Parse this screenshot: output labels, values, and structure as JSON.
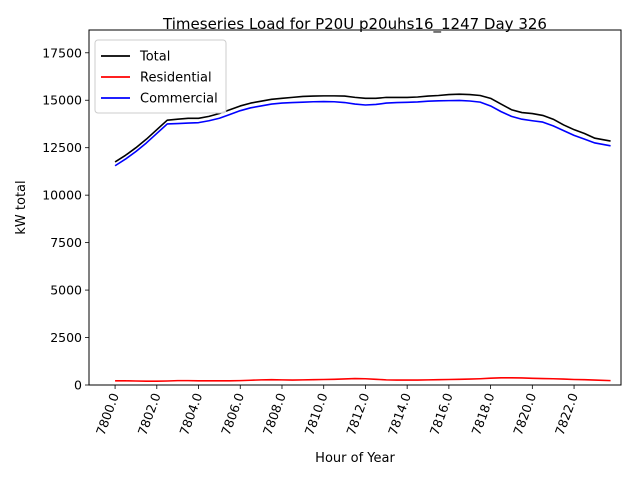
{
  "chart_data": {
    "type": "line",
    "title": "Timeseries Load for P20U p20uhs16_1247  Day 326",
    "xlabel": "Hour of Year",
    "ylabel": "kW total",
    "xlim": [
      7798.75,
      7824.25
    ],
    "ylim": [
      0,
      18700
    ],
    "xticks": [
      7800,
      7802,
      7804,
      7806,
      7808,
      7810,
      7812,
      7814,
      7816,
      7818,
      7820,
      7822
    ],
    "xtick_labels": [
      "7800.0",
      "7802.0",
      "7804.0",
      "7806.0",
      "7808.0",
      "7810.0",
      "7812.0",
      "7814.0",
      "7816.0",
      "7818.0",
      "7820.0",
      "7822.0"
    ],
    "yticks": [
      0,
      2500,
      5000,
      7500,
      10000,
      12500,
      15000,
      17500
    ],
    "ytick_labels": [
      "0",
      "2500",
      "5000",
      "7500",
      "10000",
      "12500",
      "15000",
      "17500"
    ],
    "legend_position": "upper-left",
    "x": [
      7800.0,
      7800.5,
      7801.0,
      7801.5,
      7802.0,
      7802.5,
      7803.0,
      7803.5,
      7804.0,
      7804.5,
      7805.0,
      7805.5,
      7806.0,
      7806.5,
      7807.0,
      7807.5,
      7808.0,
      7808.5,
      7809.0,
      7809.5,
      7810.0,
      7810.5,
      7811.0,
      7811.5,
      7812.0,
      7812.5,
      7813.0,
      7813.5,
      7814.0,
      7814.5,
      7815.0,
      7815.5,
      7816.0,
      7816.5,
      7817.0,
      7817.5,
      7818.0,
      7818.5,
      7819.0,
      7819.5,
      7820.0,
      7820.5,
      7821.0,
      7821.5,
      7822.0,
      7822.5,
      7823.0,
      7823.75
    ],
    "series": [
      {
        "name": "Total",
        "color": "#000000",
        "values": [
          11750,
          12100,
          12500,
          12950,
          13450,
          13950,
          14000,
          14050,
          14050,
          14150,
          14300,
          14500,
          14700,
          14850,
          14950,
          15050,
          15100,
          15150,
          15200,
          15220,
          15230,
          15230,
          15220,
          15150,
          15100,
          15100,
          15150,
          15150,
          15150,
          15170,
          15220,
          15250,
          15300,
          15320,
          15300,
          15250,
          15100,
          14800,
          14500,
          14350,
          14300,
          14200,
          14000,
          13700,
          13450,
          13250,
          13000,
          12850
        ]
      },
      {
        "name": "Residential",
        "color": "#ff0000",
        "values": [
          220,
          220,
          210,
          200,
          200,
          210,
          230,
          230,
          220,
          220,
          220,
          220,
          230,
          250,
          270,
          280,
          270,
          260,
          270,
          280,
          290,
          300,
          320,
          340,
          330,
          300,
          270,
          260,
          260,
          260,
          270,
          280,
          290,
          300,
          310,
          330,
          360,
          380,
          380,
          370,
          350,
          340,
          330,
          310,
          290,
          280,
          260,
          230
        ]
      },
      {
        "name": "Commercial",
        "color": "#0000ff",
        "values": [
          11550,
          11900,
          12300,
          12750,
          13250,
          13750,
          13770,
          13800,
          13820,
          13920,
          14050,
          14250,
          14450,
          14600,
          14700,
          14800,
          14850,
          14880,
          14900,
          14920,
          14930,
          14920,
          14880,
          14800,
          14750,
          14780,
          14850,
          14880,
          14890,
          14910,
          14950,
          14970,
          14980,
          14990,
          14960,
          14900,
          14700,
          14400,
          14150,
          14000,
          13920,
          13850,
          13650,
          13400,
          13150,
          12950,
          12750,
          12600
        ]
      }
    ]
  }
}
